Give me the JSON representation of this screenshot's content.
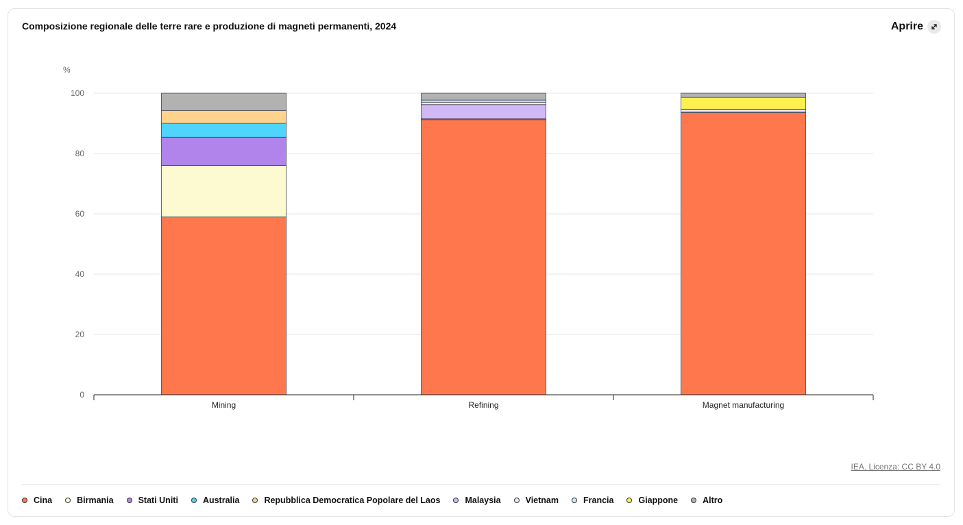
{
  "header": {
    "title": "Composizione regionale delle terre rare e produzione di magneti permanenti, 2024",
    "open_label": "Aprire"
  },
  "source": {
    "label": "IEA. Licenza: CC BY 4.0"
  },
  "chart_data": {
    "type": "bar",
    "stacked": true,
    "title": "Composizione regionale delle terre rare e produzione di magneti permanenti, 2024",
    "ylabel": "%",
    "xlabel": "",
    "ylim": [
      0,
      100
    ],
    "yticks": [
      0,
      20,
      40,
      60,
      80,
      100
    ],
    "grid": true,
    "legend_position": "bottom",
    "categories": [
      "Mining",
      "Refining",
      "Magnet manufacturing"
    ],
    "series": [
      {
        "name": "Cina",
        "color": "#ff774c",
        "values": [
          59,
          91.2,
          93.5
        ]
      },
      {
        "name": "Birmania",
        "color": "#fdf9d0",
        "values": [
          17,
          0,
          0
        ]
      },
      {
        "name": "Stati Uniti",
        "color": "#b084eb",
        "values": [
          9.4,
          0.4,
          0
        ]
      },
      {
        "name": "Australia",
        "color": "#4fd5fc",
        "values": [
          4.6,
          0,
          0
        ]
      },
      {
        "name": "Repubblica Democratica Popolare del Laos",
        "color": "#fdd38d",
        "values": [
          4.2,
          0,
          0
        ]
      },
      {
        "name": "Malaysia",
        "color": "#d1b9f7",
        "values": [
          0,
          4.6,
          0.3
        ]
      },
      {
        "name": "Vietnam",
        "color": "#ebe7fc",
        "values": [
          0,
          0.8,
          0.9
        ]
      },
      {
        "name": "Francia",
        "color": "#c9ecfc",
        "values": [
          0,
          0.7,
          0
        ]
      },
      {
        "name": "Giappone",
        "color": "#fef051",
        "values": [
          0,
          0,
          3.9
        ]
      },
      {
        "name": "Altro",
        "color": "#b2b2b2",
        "values": [
          5.8,
          2.3,
          1.4
        ]
      }
    ]
  }
}
